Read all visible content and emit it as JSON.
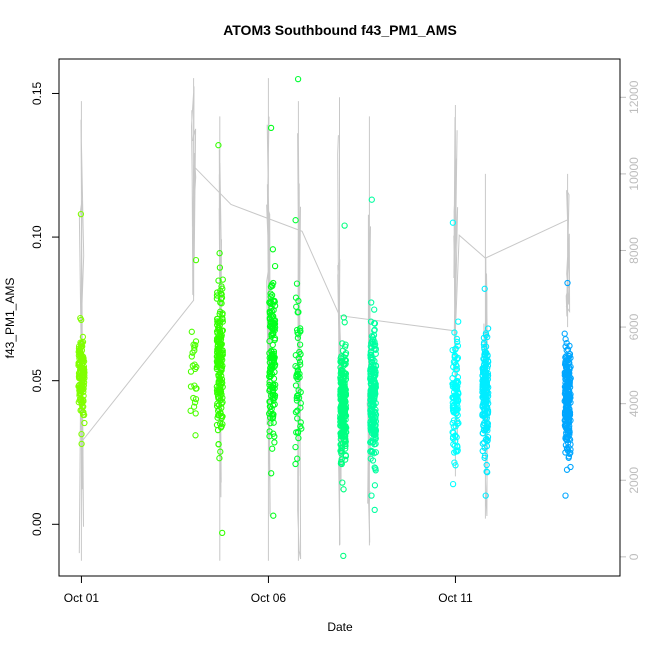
{
  "chart_data": {
    "type": "scatter",
    "title": "ATOM3 Southbound f43_PM1_AMS",
    "xlabel": "Date",
    "ylabel": "f43_PM1_AMS",
    "x_ticks": [
      {
        "day": 1,
        "label": "Oct 01"
      },
      {
        "day": 6,
        "label": "Oct 06"
      },
      {
        "day": 11,
        "label": "Oct 11"
      }
    ],
    "xlim": [
      0.4,
      15.4
    ],
    "ylim": [
      -0.018,
      0.162
    ],
    "y_ticks": [
      0.0,
      0.05,
      0.1,
      0.15
    ],
    "y_tick_labels": [
      "0.00",
      "0.05",
      "0.10",
      "0.15"
    ],
    "y2_ticks": [
      0,
      2000,
      4000,
      6000,
      8000,
      10000,
      12000
    ],
    "y2_tick_labels": [
      "0",
      "2000",
      "4000",
      "6000",
      "8000",
      "10000",
      "12000"
    ],
    "y2lim": [
      -500,
      13000
    ],
    "grid": false,
    "legend": "none",
    "clusters": [
      {
        "day": 1.0,
        "center": 0.052,
        "sd": 0.008,
        "n": 130,
        "min": 0.028,
        "max": 0.108,
        "color": "#80ff00"
      },
      {
        "day": 4.0,
        "center": 0.055,
        "sd": 0.01,
        "n": 25,
        "min": 0.031,
        "max": 0.092,
        "color": "#4cff00"
      },
      {
        "day": 4.7,
        "center": 0.058,
        "sd": 0.013,
        "n": 190,
        "min": -0.003,
        "max": 0.132,
        "color": "#33ff00"
      },
      {
        "day": 6.1,
        "center": 0.058,
        "sd": 0.014,
        "n": 150,
        "min": 0.003,
        "max": 0.138,
        "color": "#00ff1a"
      },
      {
        "day": 6.8,
        "center": 0.05,
        "sd": 0.016,
        "n": 60,
        "min": 0.021,
        "max": 0.155,
        "color": "#00ff33"
      },
      {
        "day": 8.0,
        "center": 0.042,
        "sd": 0.01,
        "n": 240,
        "min": -0.011,
        "max": 0.104,
        "color": "#00ff80"
      },
      {
        "day": 8.8,
        "center": 0.043,
        "sd": 0.011,
        "n": 220,
        "min": 0.005,
        "max": 0.113,
        "color": "#00ffa0"
      },
      {
        "day": 11.0,
        "center": 0.046,
        "sd": 0.01,
        "n": 110,
        "min": 0.014,
        "max": 0.105,
        "color": "#00ffff"
      },
      {
        "day": 11.8,
        "center": 0.046,
        "sd": 0.01,
        "n": 190,
        "min": 0.01,
        "max": 0.082,
        "color": "#00ecff"
      },
      {
        "day": 14.0,
        "center": 0.044,
        "sd": 0.009,
        "n": 230,
        "min": 0.01,
        "max": 0.084,
        "color": "#00a6ff"
      }
    ],
    "secondary_series": {
      "name": "",
      "color": "#c8c8c8",
      "bursts": [
        {
          "day": 1.0,
          "min": -100,
          "max": 11900
        },
        {
          "day": 4.0,
          "min": 6800,
          "max": 12500
        },
        {
          "day": 4.7,
          "min": -100,
          "max": 11500
        },
        {
          "day": 6.0,
          "min": -100,
          "max": 12500
        },
        {
          "day": 6.8,
          "min": -100,
          "max": 11900
        },
        {
          "day": 7.9,
          "min": 300,
          "max": 12000
        },
        {
          "day": 8.7,
          "min": 300,
          "max": 11500
        },
        {
          "day": 11.0,
          "min": 2100,
          "max": 11800
        },
        {
          "day": 11.8,
          "min": 1000,
          "max": 10000
        },
        {
          "day": 14.0,
          "min": 6000,
          "max": 10000
        }
      ],
      "trend": [
        {
          "day": 1.0,
          "value": 3000
        },
        {
          "day": 4.0,
          "value": 6700
        },
        {
          "day": 4.0,
          "value": 10200
        },
        {
          "day": 5.0,
          "value": 9200
        },
        {
          "day": 6.9,
          "value": 8500
        },
        {
          "day": 7.9,
          "value": 6300
        },
        {
          "day": 11.0,
          "value": 5900
        },
        {
          "day": 11.1,
          "value": 8400
        },
        {
          "day": 11.8,
          "value": 7800
        },
        {
          "day": 14.0,
          "value": 8800
        }
      ]
    }
  }
}
